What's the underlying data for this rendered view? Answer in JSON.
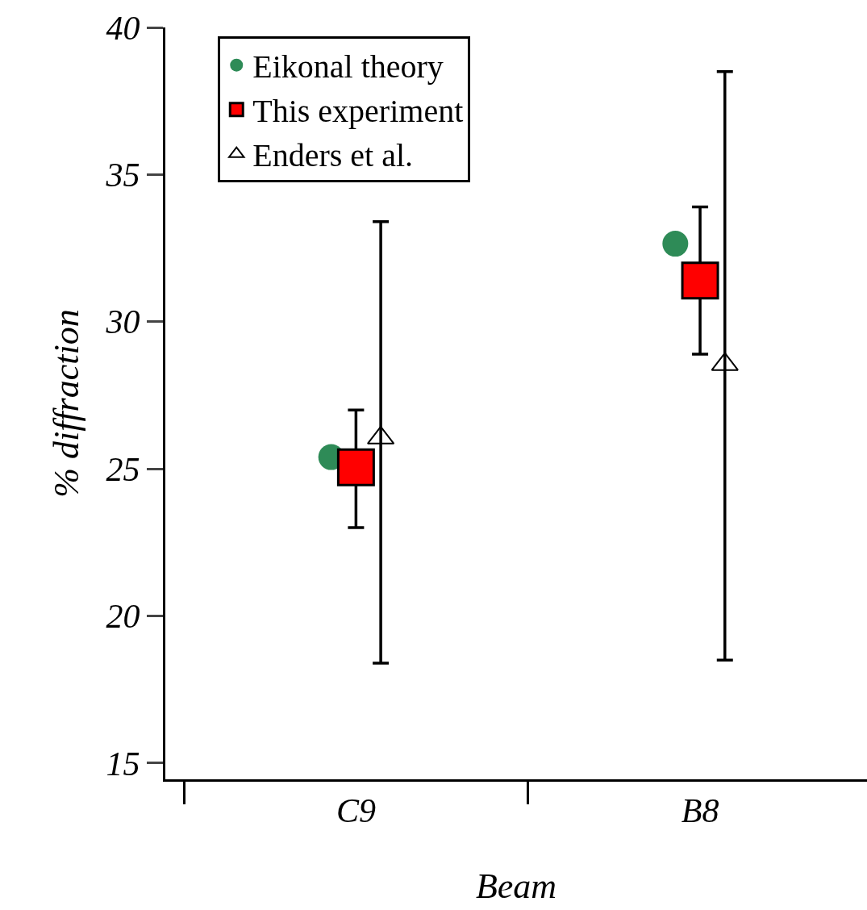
{
  "chart_data": {
    "type": "scatter",
    "xlabel": "Beam",
    "ylabel": "% diffraction",
    "categories": [
      "C9",
      "B8"
    ],
    "series": [
      {
        "name": "Eikonal theory",
        "color": "#2e8b57",
        "marker": "circle",
        "values": [
          25.4,
          32.65
        ]
      },
      {
        "name": "This experiment",
        "color": "#ff0000",
        "marker": "square",
        "values": [
          25.05,
          31.4
        ],
        "errors": [
          [
            23.0,
            27.0
          ],
          [
            28.9,
            33.9
          ]
        ]
      },
      {
        "name": "Enders et al.",
        "color": "#000000",
        "marker": "triangle",
        "values": [
          26.05,
          28.55
        ],
        "errors": [
          [
            18.4,
            33.4
          ],
          [
            18.5,
            38.5
          ]
        ]
      }
    ],
    "ylim": [
      14.45,
      40
    ],
    "yticks": [
      15,
      20,
      25,
      30,
      35,
      40
    ],
    "grid": false,
    "legend": "top left"
  }
}
